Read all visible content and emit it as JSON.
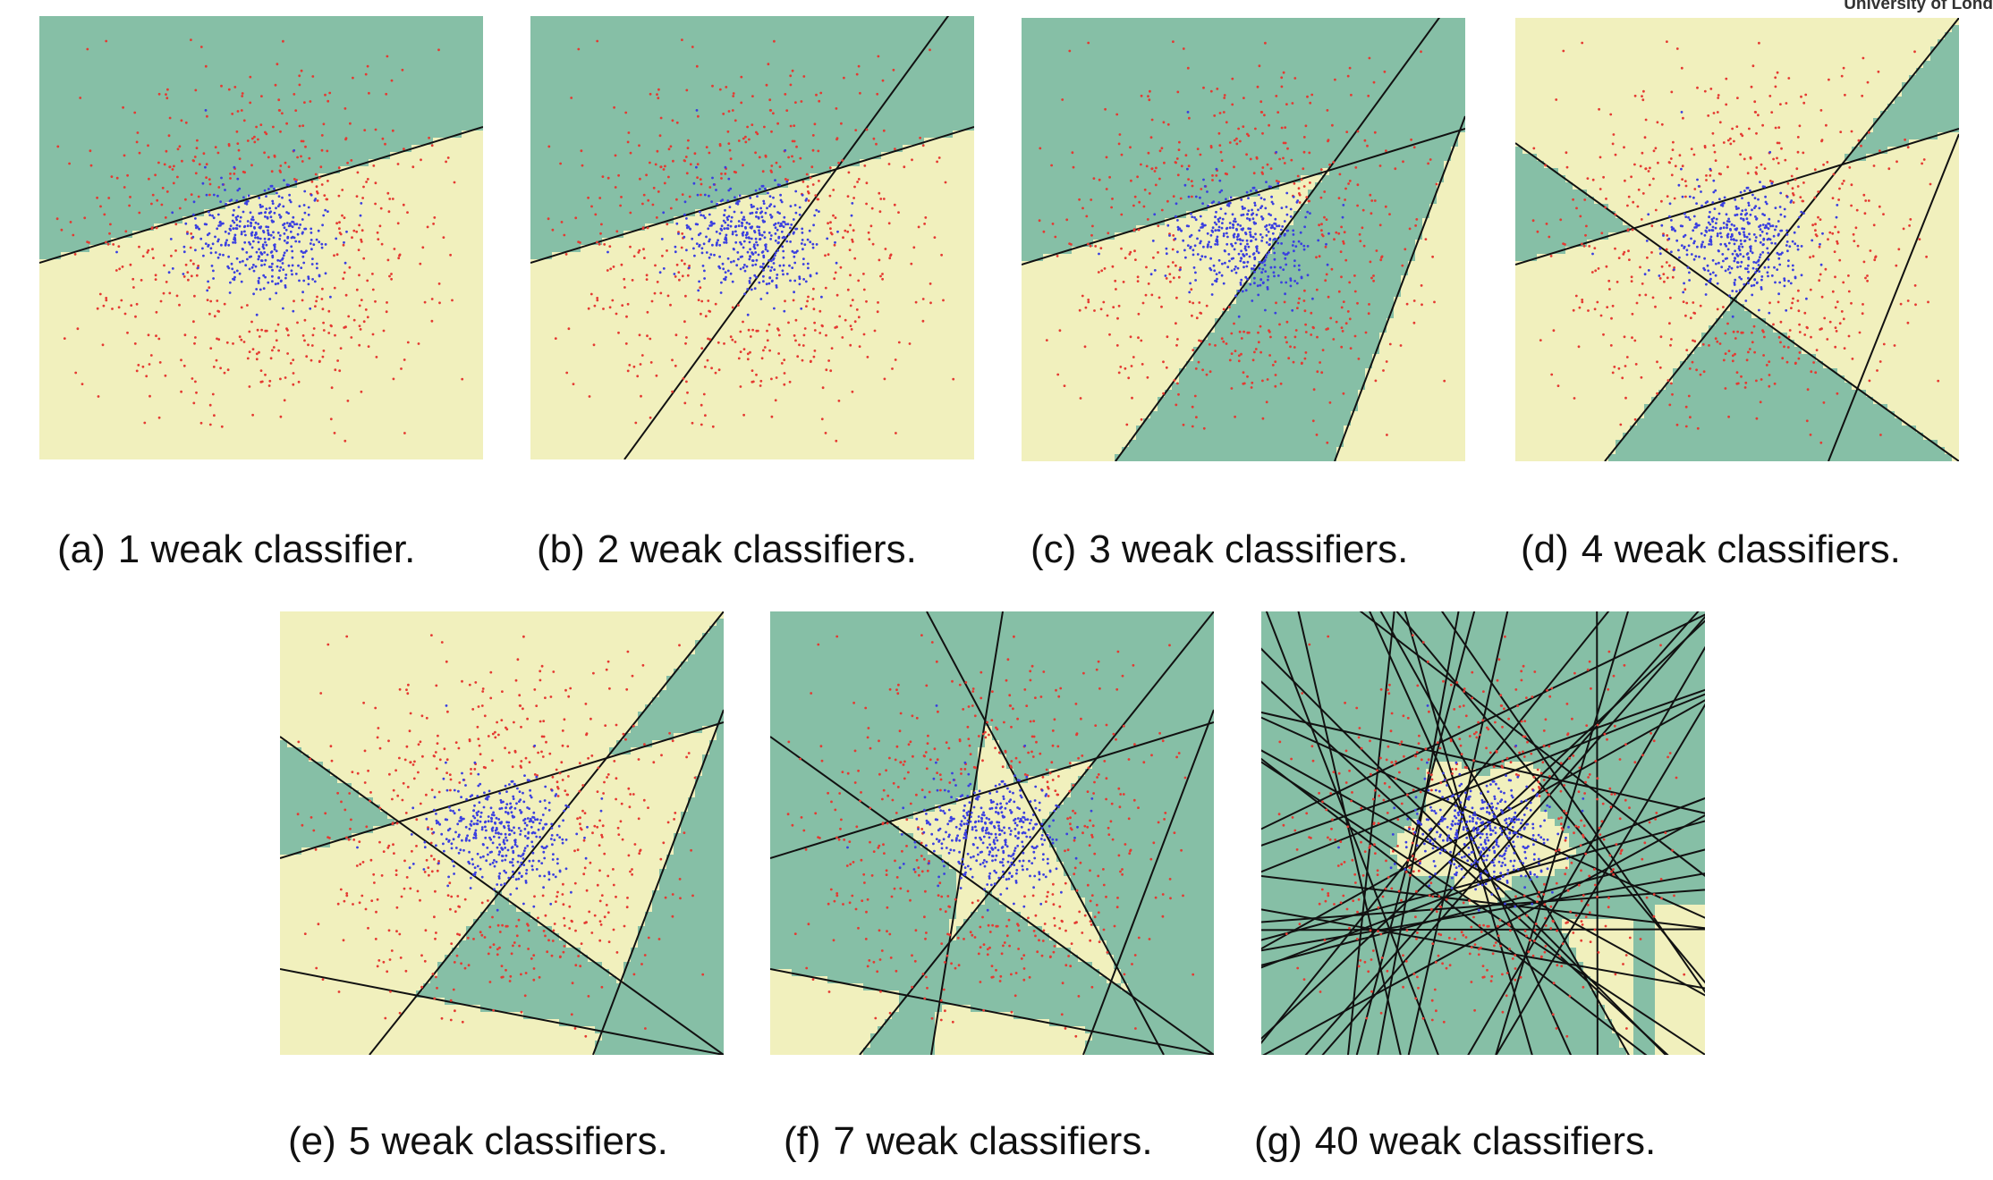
{
  "header": {
    "logo_text": "University of Lond"
  },
  "colors": {
    "region_green": "#86bfa6",
    "region_yellow": "#f1f0bd",
    "boundary": "#111111",
    "point_positive": "#e43a32",
    "point_negative": "#3a3fe0"
  },
  "panels": [
    {
      "tag": "(a)",
      "caption": "1 weak classifier."
    },
    {
      "tag": "(b)",
      "caption": "2 weak classifiers."
    },
    {
      "tag": "(c)",
      "caption": "3 weak classifiers."
    },
    {
      "tag": "(d)",
      "caption": "4 weak classifiers."
    },
    {
      "tag": "(e)",
      "caption": "5 weak classifiers."
    },
    {
      "tag": "(f)",
      "caption": "7 weak classifiers."
    },
    {
      "tag": "(g)",
      "caption": "40 weak classifiers."
    }
  ]
}
